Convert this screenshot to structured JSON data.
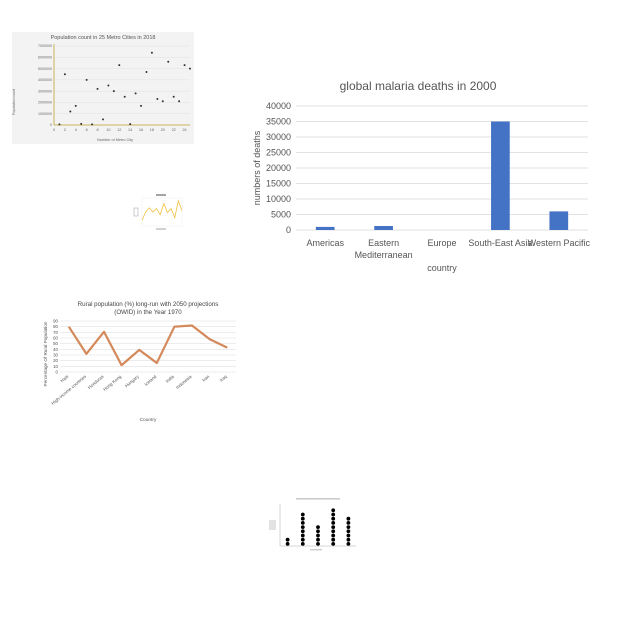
{
  "chart_data": [
    {
      "id": "population",
      "type": "scatter",
      "title": "Population count in 25 Metro Cities in 2018",
      "xlabel": "Number of Metro City",
      "ylabel": "Population count",
      "xlim": [
        0,
        25
      ],
      "ylim": [
        0,
        7000000
      ],
      "xticks": [
        0,
        2,
        4,
        6,
        8,
        10,
        12,
        14,
        16,
        18,
        20,
        22,
        24
      ],
      "yticks": [
        0,
        1000000,
        2000000,
        3000000,
        4000000,
        5000000,
        6000000,
        7000000
      ],
      "xtick_labels": [
        "0",
        "2",
        "4",
        "6",
        "8",
        "10",
        "12",
        "14",
        "16",
        "18",
        "20",
        "22",
        "24"
      ],
      "ytick_labels": [
        "0",
        "1000000",
        "2000000",
        "3000000",
        "4000000",
        "5000000",
        "6000000",
        "7000000"
      ],
      "points": [
        [
          1,
          50000
        ],
        [
          2,
          4500000
        ],
        [
          3,
          1200000
        ],
        [
          4,
          1700000
        ],
        [
          5,
          100000
        ],
        [
          6,
          4000000
        ],
        [
          7,
          50000
        ],
        [
          8,
          3200000
        ],
        [
          9,
          500000
        ],
        [
          10,
          3500000
        ],
        [
          11,
          3000000
        ],
        [
          12,
          5300000
        ],
        [
          13,
          2500000
        ],
        [
          14,
          80000
        ],
        [
          15,
          2800000
        ],
        [
          16,
          1700000
        ],
        [
          17,
          4700000
        ],
        [
          18,
          6400000
        ],
        [
          19,
          2300000
        ],
        [
          20,
          2100000
        ],
        [
          21,
          5600000
        ],
        [
          22,
          2500000
        ],
        [
          23,
          2100000
        ],
        [
          24,
          5300000
        ],
        [
          25,
          5000000
        ]
      ],
      "marker_color": "#333333",
      "axis_color": "#c8b15a",
      "grid": true
    },
    {
      "id": "malaria",
      "type": "bar",
      "title": "global malaria deaths in 2000",
      "xlabel": "country",
      "ylabel": "numbers of deaths",
      "categories": [
        "Americas",
        "Eastern\nMediterranean",
        "Europe",
        "South-East Asia",
        "Western Pacific"
      ],
      "values": [
        1000,
        1300,
        0,
        35000,
        6000
      ],
      "ylim": [
        0,
        40000
      ],
      "yticks": [
        0,
        5000,
        10000,
        15000,
        20000,
        25000,
        30000,
        35000,
        40000
      ],
      "ytick_labels": [
        "0",
        "5000",
        "10000",
        "15000",
        "20000",
        "25000",
        "30000",
        "35000",
        "40000"
      ],
      "bar_color": "#4472c4",
      "grid": true
    },
    {
      "id": "tiny",
      "type": "line",
      "title": "",
      "xlabel": "",
      "ylabel": "",
      "x": [
        0,
        1,
        2,
        3,
        4,
        5,
        6,
        7,
        8,
        9,
        10,
        11
      ],
      "values": [
        20,
        50,
        65,
        50,
        62,
        40,
        80,
        48,
        62,
        30,
        90,
        55
      ],
      "ylim": [
        0,
        100
      ],
      "line_color": "#f0c040"
    },
    {
      "id": "rural",
      "type": "line",
      "title": "Rural population (%) long-run with 2050 projections (OWID) in the Year 1970",
      "title_lines": [
        "Rural population (%) long-run with 2050 projections",
        "(OWID) in the Year 1970"
      ],
      "xlabel": "Country",
      "ylabel": "Percentage Of Rural Population",
      "categories": [
        "Haiti",
        "High-income countries",
        "Honduras",
        "Hong Kong",
        "Hungary",
        "Iceland",
        "India",
        "Indonesia",
        "Iran",
        "Iraq"
      ],
      "values": [
        80,
        32,
        71,
        12,
        39,
        16,
        80,
        82,
        58,
        43
      ],
      "ylim": [
        0,
        90
      ],
      "yticks": [
        0,
        10,
        20,
        30,
        40,
        50,
        60,
        70,
        80,
        90
      ],
      "ytick_labels": [
        "0",
        "10",
        "20",
        "30",
        "40",
        "50",
        "60",
        "70",
        "80",
        "90"
      ],
      "line_color": "#d4895a",
      "grid": true
    },
    {
      "id": "dotplot",
      "type": "scatter",
      "title": "",
      "xlabel": "",
      "ylabel": "",
      "columns": [
        {
          "x": 1,
          "count": 2
        },
        {
          "x": 2,
          "count": 8
        },
        {
          "x": 3,
          "count": 5
        },
        {
          "x": 4,
          "count": 9
        },
        {
          "x": 5,
          "count": 7
        }
      ],
      "ylim": [
        0,
        10
      ],
      "dot_color": "#000000"
    }
  ]
}
